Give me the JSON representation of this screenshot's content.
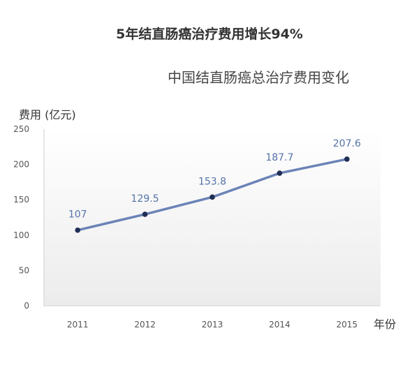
{
  "title": "5年结直肠癌治疗费用增长94%",
  "subtitle": "中国结直肠癌总治疗费用变化",
  "chart_data": {
    "type": "line",
    "title": "5年结直肠癌治疗费用增长94%",
    "subtitle": "中国结直肠癌总治疗费用变化",
    "xlabel": "年份",
    "ylabel": "费用 (亿元)",
    "categories": [
      "2011",
      "2012",
      "2013",
      "2014",
      "2015"
    ],
    "series": [
      {
        "values": [
          107,
          129.5,
          153.8,
          187.7,
          207.6
        ]
      }
    ],
    "data_labels": [
      "107",
      "129.5",
      "153.8",
      "187.7",
      "207.6"
    ],
    "ylim": [
      0,
      250
    ],
    "yticks": [
      "0",
      "50",
      "100",
      "150",
      "200",
      "250"
    ],
    "grid": false,
    "legend": "none",
    "colors": {
      "line": "#6b83b7",
      "marker": "#1f2e55",
      "label": "#5573a8",
      "axis": "#cfcfcf",
      "tick": "#555555",
      "plot_bg_top": "#ffffff",
      "plot_bg_bottom": "#ececec"
    }
  }
}
